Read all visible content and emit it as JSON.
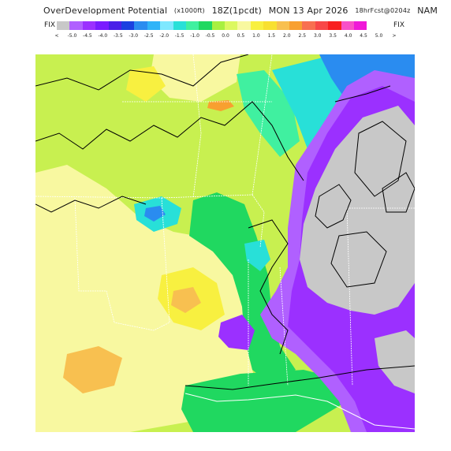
{
  "header": {
    "product": "OverDevelopment Potential",
    "units": "(x1000ft)",
    "valid_time": "18Z(1pcdt)",
    "date": "MON 13 Apr 2026",
    "forecast": "18hrFcst@0204z",
    "model": "NAM"
  },
  "legend": {
    "left_label": "FIX",
    "right_label": "FIX",
    "colors": [
      "#c8c8c8",
      "#b060ff",
      "#9b30ff",
      "#7a1cff",
      "#4a20e8",
      "#1a40e0",
      "#2a8cf0",
      "#30b4f8",
      "#7ee8ff",
      "#28e0d8",
      "#40f0a0",
      "#20d860",
      "#a8f040",
      "#dcf860",
      "#f8f8a0",
      "#f8f040",
      "#f8e030",
      "#f8c050",
      "#f8a030",
      "#f87050",
      "#f84848",
      "#f82020",
      "#f850c8",
      "#f018d8"
    ],
    "tick_labels": [
      "<",
      "-5.0",
      "-4.5",
      "-4.0",
      "-3.5",
      "-3.0",
      "-2.5",
      "-2.0",
      "-1.5",
      "-1.0",
      "-0.5",
      "0.0",
      "0.5",
      "1.0",
      "1.5",
      "2.0",
      "2.5",
      "3.0",
      "3.5",
      "4.0",
      "4.5",
      "5.0",
      ">"
    ]
  },
  "map": {
    "field": "overdevelopment potential",
    "palette": {
      "yellow_green": "#c8f050",
      "pale_yellow": "#f8f8a0",
      "yellow": "#f8f040",
      "orange": "#f8c050",
      "green": "#20d860",
      "teal": "#28e0d8",
      "blue": "#2a8cf0",
      "purple": "#9b30ff",
      "violet": "#b060ff",
      "gray": "#c8c8c8"
    }
  }
}
